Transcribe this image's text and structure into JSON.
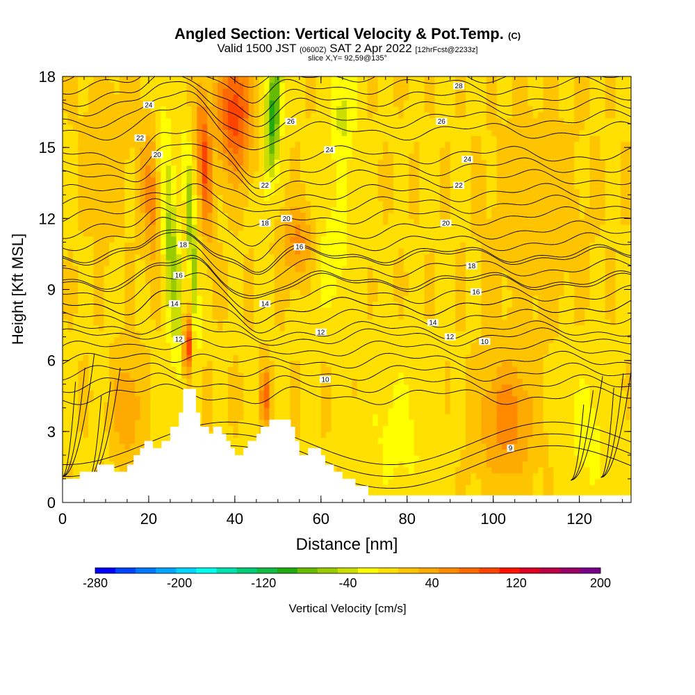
{
  "title": {
    "main": "Angled Section: Vertical Velocity & Pot.Temp.",
    "main_unit": "(C)",
    "valid_prefix": "Valid 1500 JST",
    "valid_zulu": "(0600Z)",
    "valid_date": "SAT 2 Apr 2022",
    "forecast": "[12hrFcst@2233z]",
    "slice": "slice X,Y= 92,59@135°"
  },
  "chart_data": {
    "type": "heatmap",
    "xlabel": "Distance [nm]",
    "ylabel": "Height [Kft MSL]",
    "xlim": [
      0,
      132
    ],
    "ylim": [
      0,
      18
    ],
    "x_ticks": [
      0,
      20,
      40,
      60,
      80,
      100,
      120
    ],
    "y_ticks": [
      0,
      3,
      6,
      9,
      12,
      15,
      18
    ],
    "colorbar": {
      "label": "Vertical Velocity [cm/s]",
      "min": -280,
      "max": 200,
      "step": 20,
      "tick_labels": [
        "-280",
        "-200",
        "-120",
        "-40",
        "40",
        "120",
        "200"
      ],
      "colors": [
        "#0000ff",
        "#0044ff",
        "#0077ff",
        "#00a6ff",
        "#00d4ff",
        "#00ffee",
        "#00e0b0",
        "#00cc77",
        "#11bb44",
        "#22aa11",
        "#66bb00",
        "#99cc00",
        "#ccdd00",
        "#ffff00",
        "#ffe000",
        "#ffc400",
        "#ffaa00",
        "#ff8a00",
        "#ff6a00",
        "#ff4400",
        "#ff1100",
        "#dd0022",
        "#bb0044",
        "#990066",
        "#770088"
      ]
    },
    "terrain": [
      [
        0,
        1
      ],
      [
        4,
        1
      ],
      [
        4,
        1.3
      ],
      [
        8,
        1.3
      ],
      [
        8,
        1.6
      ],
      [
        12,
        1.6
      ],
      [
        12,
        1.3
      ],
      [
        15,
        1.3
      ],
      [
        15,
        1.6
      ],
      [
        16.5,
        1.6
      ],
      [
        16.5,
        2
      ],
      [
        18,
        2
      ],
      [
        18,
        2.3
      ],
      [
        19,
        2.3
      ],
      [
        19,
        2.6
      ],
      [
        21,
        2.6
      ],
      [
        21,
        2.3
      ],
      [
        23,
        2.3
      ],
      [
        23,
        2.6
      ],
      [
        25,
        2.6
      ],
      [
        25,
        3.2
      ],
      [
        27,
        3.2
      ],
      [
        27,
        3.8
      ],
      [
        28,
        3.8
      ],
      [
        28,
        4.8
      ],
      [
        31,
        4.8
      ],
      [
        31,
        3.8
      ],
      [
        32,
        3.8
      ],
      [
        32,
        3.2
      ],
      [
        34,
        3.2
      ],
      [
        34,
        2.9
      ],
      [
        35,
        2.9
      ],
      [
        35,
        3.2
      ],
      [
        37,
        3.2
      ],
      [
        37,
        2.9
      ],
      [
        38,
        2.9
      ],
      [
        38,
        2.6
      ],
      [
        39,
        2.6
      ],
      [
        39,
        2.3
      ],
      [
        40,
        2.3
      ],
      [
        40,
        2.0
      ],
      [
        42,
        2.0
      ],
      [
        42,
        2.3
      ],
      [
        43,
        2.3
      ],
      [
        43,
        2.6
      ],
      [
        45,
        2.6
      ],
      [
        45,
        2.9
      ],
      [
        46,
        2.9
      ],
      [
        46,
        3.2
      ],
      [
        48,
        3.2
      ],
      [
        48,
        3.5
      ],
      [
        53,
        3.5
      ],
      [
        53,
        3.2
      ],
      [
        54,
        3.2
      ],
      [
        54,
        2.6
      ],
      [
        55,
        2.6
      ],
      [
        55,
        2.0
      ],
      [
        57,
        2.0
      ],
      [
        57,
        2.3
      ],
      [
        60,
        2.3
      ],
      [
        60,
        2.0
      ],
      [
        61,
        2.0
      ],
      [
        61,
        1.6
      ],
      [
        63,
        1.6
      ],
      [
        63,
        1.3
      ],
      [
        65,
        1.3
      ],
      [
        65,
        1.0
      ],
      [
        68,
        1.0
      ],
      [
        68,
        0.7
      ],
      [
        71,
        0.7
      ],
      [
        71,
        0.3
      ],
      [
        132,
        0.3
      ]
    ],
    "theta_contours": [
      {
        "label": "9",
        "base": 2.0,
        "pos": [
          104,
          2.3
        ]
      },
      {
        "label": "10",
        "base": 5.0,
        "pos": [
          98,
          6.8
        ]
      },
      {
        "label": "12",
        "base": 6.5,
        "pos": [
          90,
          7.0
        ]
      },
      {
        "label": "14",
        "base": 7.8,
        "pos": [
          86,
          7.6
        ]
      },
      {
        "label": "16",
        "base": 8.8,
        "pos": [
          96,
          8.9
        ]
      },
      {
        "label": "18",
        "base": 9.9,
        "pos": [
          95,
          10.0
        ]
      },
      {
        "label": "20",
        "base": 11.0,
        "pos": [
          89,
          11.8
        ]
      },
      {
        "label": "22",
        "base": 12.6,
        "pos": [
          92,
          13.4
        ]
      },
      {
        "label": "24",
        "base": 14.2,
        "pos": [
          94,
          14.5
        ]
      },
      {
        "label": "26",
        "base": 16.2,
        "pos": [
          88,
          16.1
        ]
      },
      {
        "label": "28",
        "base": 17.6,
        "pos": [
          92,
          17.6
        ]
      }
    ],
    "extra_contour_labels": [
      {
        "label": "24",
        "pos": [
          20,
          16.8
        ]
      },
      {
        "label": "22",
        "pos": [
          18,
          15.4
        ]
      },
      {
        "label": "20",
        "pos": [
          22,
          14.7
        ]
      },
      {
        "label": "26",
        "pos": [
          53,
          16.1
        ]
      },
      {
        "label": "24",
        "pos": [
          62,
          14.9
        ]
      },
      {
        "label": "22",
        "pos": [
          47,
          13.4
        ]
      },
      {
        "label": "20",
        "pos": [
          52,
          12.0
        ]
      },
      {
        "label": "18",
        "pos": [
          47,
          11.8
        ]
      },
      {
        "label": "18",
        "pos": [
          28,
          10.9
        ]
      },
      {
        "label": "16",
        "pos": [
          55,
          10.8
        ]
      },
      {
        "label": "16",
        "pos": [
          27,
          9.6
        ]
      },
      {
        "label": "14",
        "pos": [
          26,
          8.4
        ]
      },
      {
        "label": "14",
        "pos": [
          47,
          8.4
        ]
      },
      {
        "label": "12",
        "pos": [
          27,
          6.9
        ]
      },
      {
        "label": "12",
        "pos": [
          60,
          7.2
        ]
      },
      {
        "label": "10",
        "pos": [
          61,
          5.2
        ]
      }
    ],
    "vertical_velocity_features": [
      {
        "x": 25,
        "y": 11,
        "sx": 2.2,
        "sy": 5.5,
        "tilt": -0.35,
        "amp": -70
      },
      {
        "x": 30,
        "y": 11,
        "sx": 1.0,
        "sy": 4,
        "tilt": -0.3,
        "amp": -80
      },
      {
        "x": 49,
        "y": 16.5,
        "sx": 1.8,
        "sy": 3,
        "tilt": 0.35,
        "amp": -110
      },
      {
        "x": 65,
        "y": 16.5,
        "sx": 3,
        "sy": 2.5,
        "tilt": 0,
        "amp": -45
      },
      {
        "x": 62,
        "y": 10.5,
        "sx": 6,
        "sy": 2.5,
        "tilt": 0,
        "amp": -30
      },
      {
        "x": 40,
        "y": 16.5,
        "sx": 4,
        "sy": 2.5,
        "tilt": 0,
        "amp": 95
      },
      {
        "x": 33,
        "y": 14.5,
        "sx": 1.5,
        "sy": 3,
        "tilt": -0.25,
        "amp": 85
      },
      {
        "x": 21,
        "y": 13,
        "sx": 2.5,
        "sy": 3,
        "tilt": -0.2,
        "amp": 55
      },
      {
        "x": 29,
        "y": 6.6,
        "sx": 1.0,
        "sy": 1.3,
        "tilt": 0,
        "amp": 110
      },
      {
        "x": 55,
        "y": 11,
        "sx": 4,
        "sy": 1.6,
        "tilt": 0,
        "amp": 55
      },
      {
        "x": 47,
        "y": 4.5,
        "sx": 1.0,
        "sy": 1.2,
        "tilt": 0,
        "amp": 75
      },
      {
        "x": 103,
        "y": 3.5,
        "sx": 6,
        "sy": 2.5,
        "tilt": 0,
        "amp": 55
      },
      {
        "x": 15,
        "y": 4,
        "sx": 3,
        "sy": 2,
        "tilt": 0,
        "amp": 45
      },
      {
        "x": 122,
        "y": 3,
        "sx": 6,
        "sy": 3,
        "tilt": 0,
        "amp": -25
      },
      {
        "x": 78,
        "y": 3,
        "sx": 8,
        "sy": 3,
        "tilt": 0,
        "amp": -25
      },
      {
        "x": 10,
        "y": 15,
        "sx": 5,
        "sy": 3,
        "tilt": 0,
        "amp": 15
      },
      {
        "x": 110,
        "y": 12,
        "sx": 10,
        "sy": 4,
        "tilt": 0,
        "amp": 15
      }
    ],
    "background_velocity": 18
  }
}
